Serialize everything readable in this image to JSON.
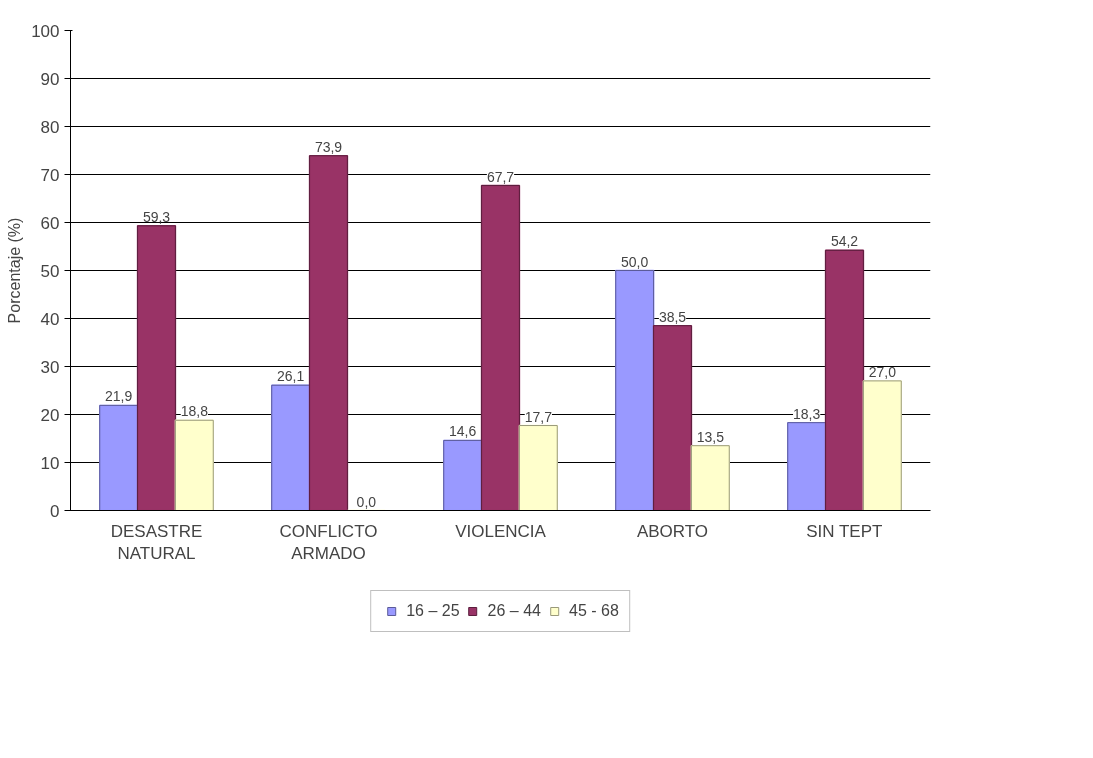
{
  "chart_data": {
    "type": "bar",
    "ylabel": "Porcentaje (%)",
    "categories": [
      "DESASTRE\nNATURAL",
      "CONFLICTO\nARMADO",
      "VIOLENCIA",
      "ABORTO",
      "SIN TEPT"
    ],
    "series": [
      {
        "name": "16 – 25",
        "color": "#9999ff",
        "values": [
          21.9,
          26.1,
          14.6,
          50.0,
          18.3
        ],
        "value_labels": [
          "21,9",
          "26,1",
          "14,6",
          "50,0",
          "18,3"
        ]
      },
      {
        "name": "26 – 44",
        "color": "#993366",
        "values": [
          59.3,
          73.9,
          67.7,
          38.5,
          54.2
        ],
        "value_labels": [
          "59,3",
          "73,9",
          "67,7",
          "38,5",
          "54,2"
        ]
      },
      {
        "name": "45 - 68",
        "color": "#ffffcc",
        "values": [
          18.8,
          0.0,
          17.7,
          13.5,
          27.0
        ],
        "value_labels": [
          "18,8",
          "0,0",
          "17,7",
          "13,5",
          "27,0"
        ]
      }
    ],
    "ylim": [
      0,
      100
    ],
    "yticks": [
      0,
      10,
      20,
      30,
      40,
      50,
      60,
      70,
      80,
      90,
      100
    ],
    "grid": "y",
    "legend": "bottom"
  }
}
